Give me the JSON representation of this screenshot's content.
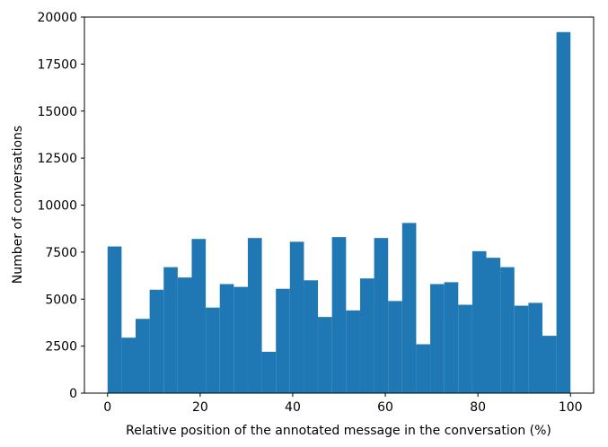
{
  "chart_data": {
    "type": "histogram",
    "xlabel": "Relative position of the annotated message in the conversation (%)",
    "ylabel": "Number of conversations",
    "bins": [
      0,
      3.03,
      6.06,
      9.09,
      12.12,
      15.15,
      18.18,
      21.21,
      24.24,
      27.27,
      30.3,
      33.33,
      36.36,
      39.39,
      42.42,
      45.45,
      48.48,
      51.52,
      54.55,
      57.58,
      60.61,
      63.64,
      66.67,
      69.7,
      72.73,
      75.76,
      78.79,
      81.82,
      84.85,
      87.88,
      90.91,
      93.94,
      96.97,
      100
    ],
    "values": [
      7800,
      2950,
      3950,
      5500,
      6700,
      6150,
      8200,
      4550,
      5800,
      5650,
      8250,
      2200,
      5550,
      8050,
      6000,
      4050,
      8300,
      4400,
      6100,
      8250,
      4900,
      9050,
      2600,
      5800,
      5900,
      4700,
      7550,
      7200,
      6700,
      4650,
      4800,
      3050,
      19200
    ],
    "color": "#1f77b4",
    "xlim": [
      -5,
      105
    ],
    "xticks": [
      0,
      20,
      40,
      60,
      80,
      100
    ],
    "ylim": [
      0,
      20000
    ],
    "yticks": [
      0,
      2500,
      5000,
      7500,
      10000,
      12500,
      15000,
      17500,
      20000
    ]
  }
}
